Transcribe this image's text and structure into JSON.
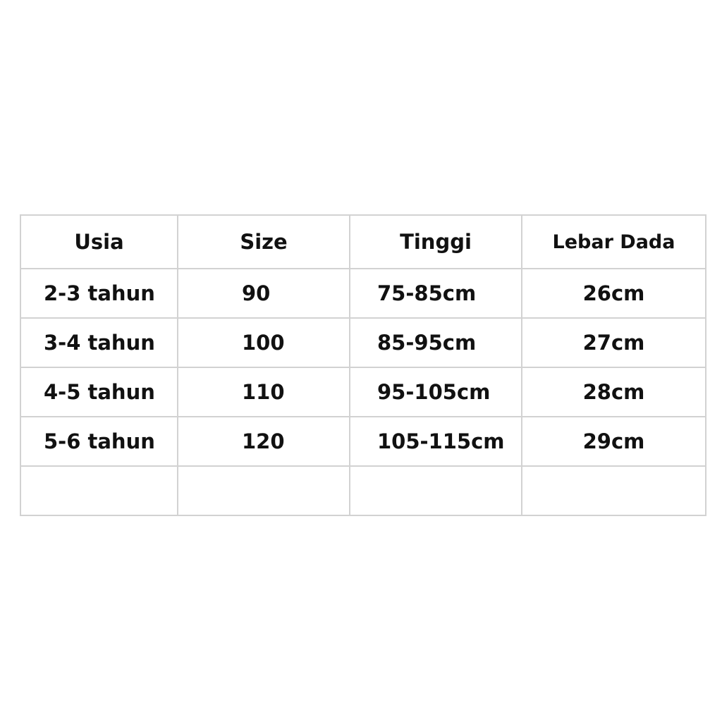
{
  "table": {
    "headers": [
      "Usia",
      "Size",
      "Tinggi",
      "Lebar Dada"
    ],
    "rows": [
      [
        "2-3 tahun",
        "90",
        "75-85cm",
        "26cm"
      ],
      [
        "3-4 tahun",
        "100",
        "85-95cm",
        "27cm"
      ],
      [
        "4-5 tahun",
        "110",
        "95-105cm",
        "28cm"
      ],
      [
        "5-6 tahun",
        "120",
        "105-115cm",
        "29cm"
      ],
      [
        "",
        "",
        "",
        ""
      ]
    ]
  }
}
